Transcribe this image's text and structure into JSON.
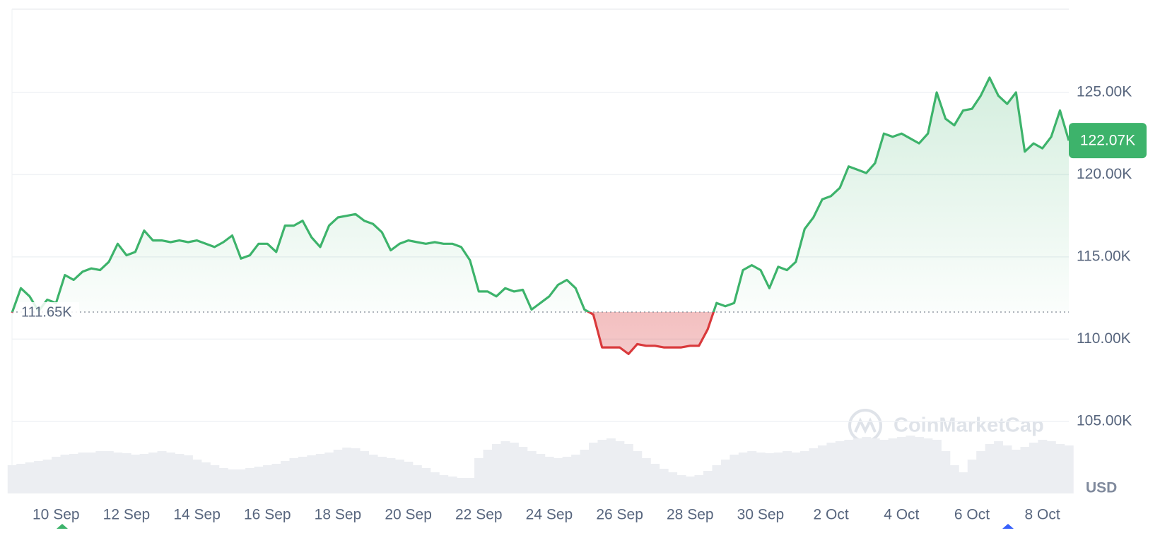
{
  "chart_data": {
    "type": "line",
    "categories": [
      null,
      null,
      null,
      null,
      null,
      "10 Sep",
      null,
      null,
      null,
      null,
      null,
      null,
      null,
      "12 Sep",
      null,
      null,
      null,
      null,
      null,
      null,
      null,
      "14 Sep",
      null,
      null,
      null,
      null,
      null,
      null,
      null,
      "16 Sep",
      null,
      null,
      null,
      null,
      null,
      null,
      null,
      "18 Sep",
      null,
      null,
      null,
      null,
      null,
      null,
      null,
      "20 Sep",
      null,
      null,
      null,
      null,
      null,
      null,
      null,
      "22 Sep",
      null,
      null,
      null,
      null,
      null,
      null,
      null,
      "24 Sep",
      null,
      null,
      null,
      null,
      null,
      null,
      null,
      "26 Sep",
      null,
      null,
      null,
      null,
      null,
      null,
      null,
      "28 Sep",
      null,
      null,
      null,
      null,
      null,
      null,
      null,
      "30 Sep",
      null,
      null,
      null,
      null,
      null,
      null,
      null,
      "2 Oct",
      null,
      null,
      null,
      null,
      null,
      null,
      null,
      "4 Oct",
      null,
      null,
      null,
      null,
      null,
      null,
      null,
      "6 Oct",
      null,
      null,
      null,
      null,
      null,
      null,
      null,
      "8 Oct",
      null,
      null,
      null
    ],
    "series": [
      {
        "name": "Price",
        "color_up": "#3db36b",
        "color_down": "#d9393b",
        "values": [
          111.6,
          113.1,
          112.6,
          111.7,
          112.4,
          112.2,
          113.9,
          113.6,
          114.1,
          114.3,
          114.2,
          114.7,
          115.8,
          115.1,
          115.3,
          116.6,
          116.0,
          116.0,
          115.9,
          116.0,
          115.9,
          116.0,
          115.8,
          115.6,
          115.9,
          116.3,
          114.9,
          115.1,
          115.8,
          115.8,
          115.3,
          116.9,
          116.9,
          117.2,
          116.2,
          115.6,
          116.9,
          117.4,
          117.5,
          117.6,
          117.2,
          117.0,
          116.5,
          115.4,
          115.8,
          116.0,
          115.9,
          115.8,
          115.9,
          115.8,
          115.8,
          115.6,
          114.8,
          112.9,
          112.9,
          112.6,
          113.1,
          112.9,
          113.0,
          111.8,
          112.2,
          112.6,
          113.3,
          113.6,
          113.1,
          111.8,
          111.5,
          109.5,
          109.5,
          109.5,
          109.1,
          109.7,
          109.6,
          109.6,
          109.5,
          109.5,
          109.5,
          109.6,
          109.6,
          110.6,
          112.2,
          112.0,
          112.2,
          114.2,
          114.5,
          114.2,
          113.1,
          114.4,
          114.2,
          114.7,
          116.7,
          117.4,
          118.5,
          118.7,
          119.2,
          120.5,
          120.3,
          120.1,
          120.7,
          122.5,
          122.3,
          122.5,
          122.2,
          121.9,
          122.5,
          125.0,
          123.4,
          123.0,
          123.9,
          124.0,
          124.8,
          125.9,
          124.8,
          124.3,
          125.0,
          121.4,
          121.9,
          121.6,
          122.3,
          123.9,
          122.07
        ]
      },
      {
        "name": "Volume",
        "color": "#eceef2",
        "values": [
          40,
          42,
          44,
          46,
          48,
          52,
          55,
          56,
          58,
          58,
          60,
          60,
          58,
          57,
          55,
          56,
          58,
          60,
          58,
          56,
          54,
          48,
          44,
          40,
          36,
          34,
          34,
          36,
          38,
          40,
          42,
          46,
          50,
          52,
          54,
          56,
          58,
          62,
          65,
          64,
          60,
          55,
          52,
          50,
          48,
          45,
          40,
          36,
          30,
          26,
          24,
          22,
          22,
          50,
          62,
          70,
          74,
          72,
          66,
          60,
          56,
          52,
          50,
          52,
          55,
          62,
          72,
          76,
          78,
          74,
          70,
          60,
          50,
          42,
          35,
          30,
          26,
          24,
          26,
          32,
          40,
          48,
          55,
          58,
          60,
          58,
          57,
          58,
          60,
          58,
          60,
          64,
          68,
          72,
          74,
          76,
          78,
          80,
          78,
          76,
          78,
          80,
          82,
          80,
          78,
          76,
          60,
          40,
          30,
          48,
          60,
          70,
          74,
          68,
          62,
          66,
          72,
          76,
          74,
          70,
          68
        ]
      }
    ],
    "baseline": {
      "value": 111.65,
      "label": "111.65K"
    },
    "current": {
      "value": 122.07,
      "label": "122.07K"
    },
    "ylim": [
      100.62,
      130.06
    ],
    "yticks": [
      {
        "value": 105,
        "label": "105.00K"
      },
      {
        "value": 110,
        "label": "110.00K"
      },
      {
        "value": 115,
        "label": "115.00K"
      },
      {
        "value": 120,
        "label": "120.00K"
      },
      {
        "value": 125,
        "label": "125.00K"
      }
    ],
    "grid": true,
    "unit_label": "USD",
    "watermark": "CoinMarketCap"
  }
}
